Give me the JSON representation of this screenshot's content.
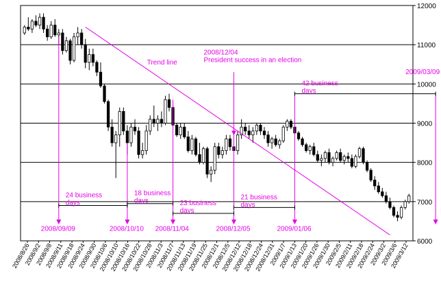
{
  "chart_data": {
    "type": "candlestick",
    "title": "",
    "xlabel": "",
    "ylabel": "",
    "ylim": [
      6000,
      12000
    ],
    "y_ticks": [
      6000,
      7000,
      8000,
      9000,
      10000,
      11000,
      12000
    ],
    "y_axis_side": "right",
    "grid": "horizontal",
    "x_tick_labels": [
      "2008/8/26",
      "2008/9/2",
      "2008/9/8",
      "2008/9/11",
      "2008/9/18",
      "2008/9/24",
      "2008/9/30",
      "2008/10/6",
      "2008/10/10",
      "2008/10/16",
      "2008/10/22",
      "2008/10/28",
      "2008/11/3",
      "2008/11/7",
      "2008/11/13",
      "2008/11/19",
      "2008/11/25",
      "2008/12/1",
      "2008/12/5",
      "2008/12/12",
      "2008/12/18",
      "2008/12/24",
      "2008/12/31",
      "2009/1/7",
      "2009/1/13",
      "2009/1/20",
      "2009/1/26",
      "2009/1/30",
      "2009/2/5",
      "2009/2/11",
      "2009/2/18",
      "2009/2/24",
      "2009/3/2",
      "2009/3/6",
      "2009/3/12"
    ],
    "candles": [
      {
        "o": 11300,
        "h": 11500,
        "l": 11250,
        "c": 11450
      },
      {
        "o": 11450,
        "h": 11700,
        "l": 11350,
        "c": 11400
      },
      {
        "o": 11400,
        "h": 11650,
        "l": 11300,
        "c": 11600
      },
      {
        "o": 11600,
        "h": 11750,
        "l": 11450,
        "c": 11500
      },
      {
        "o": 11500,
        "h": 11800,
        "l": 11400,
        "c": 11700
      },
      {
        "o": 11700,
        "h": 11800,
        "l": 11300,
        "c": 11400
      },
      {
        "o": 11400,
        "h": 11500,
        "l": 11100,
        "c": 11200
      },
      {
        "o": 11200,
        "h": 11600,
        "l": 11150,
        "c": 11500
      },
      {
        "o": 11500,
        "h": 11650,
        "l": 11200,
        "c": 11250
      },
      {
        "o": 11250,
        "h": 11400,
        "l": 11000,
        "c": 11300
      },
      {
        "o": 11300,
        "h": 11400,
        "l": 10750,
        "c": 10850
      },
      {
        "o": 10850,
        "h": 11200,
        "l": 10800,
        "c": 11100
      },
      {
        "o": 11100,
        "h": 11150,
        "l": 10500,
        "c": 10600
      },
      {
        "o": 10600,
        "h": 11300,
        "l": 10550,
        "c": 11200
      },
      {
        "o": 11200,
        "h": 11450,
        "l": 11000,
        "c": 11300
      },
      {
        "o": 11300,
        "h": 11400,
        "l": 10900,
        "c": 11000
      },
      {
        "o": 11000,
        "h": 11150,
        "l": 10400,
        "c": 10550
      },
      {
        "o": 10550,
        "h": 10900,
        "l": 10350,
        "c": 10750
      },
      {
        "o": 10750,
        "h": 10900,
        "l": 10450,
        "c": 10550
      },
      {
        "o": 10550,
        "h": 10600,
        "l": 10200,
        "c": 10300
      },
      {
        "o": 10300,
        "h": 10550,
        "l": 9900,
        "c": 9950
      },
      {
        "o": 9950,
        "h": 10000,
        "l": 9500,
        "c": 9550
      },
      {
        "o": 9550,
        "h": 9600,
        "l": 8800,
        "c": 8900
      },
      {
        "o": 8900,
        "h": 9100,
        "l": 8400,
        "c": 8500
      },
      {
        "o": 8500,
        "h": 8800,
        "l": 7600,
        "c": 8700
      },
      {
        "o": 8700,
        "h": 9400,
        "l": 8400,
        "c": 9300
      },
      {
        "o": 9300,
        "h": 9400,
        "l": 8700,
        "c": 8800
      },
      {
        "o": 8800,
        "h": 8950,
        "l": 8200,
        "c": 8500
      },
      {
        "o": 8500,
        "h": 9000,
        "l": 8400,
        "c": 8900
      },
      {
        "o": 8900,
        "h": 9100,
        "l": 8700,
        "c": 8800
      },
      {
        "o": 8800,
        "h": 8900,
        "l": 8100,
        "c": 8200
      },
      {
        "o": 8200,
        "h": 8500,
        "l": 8100,
        "c": 8300
      },
      {
        "o": 8300,
        "h": 8950,
        "l": 8200,
        "c": 8800
      },
      {
        "o": 8800,
        "h": 9200,
        "l": 8700,
        "c": 9100
      },
      {
        "o": 9100,
        "h": 9450,
        "l": 8900,
        "c": 9000
      },
      {
        "o": 9000,
        "h": 9200,
        "l": 8800,
        "c": 9100
      },
      {
        "o": 9100,
        "h": 9300,
        "l": 8900,
        "c": 9000
      },
      {
        "o": 9000,
        "h": 9700,
        "l": 8950,
        "c": 9600
      },
      {
        "o": 9600,
        "h": 9750,
        "l": 9300,
        "c": 9400
      },
      {
        "o": 9400,
        "h": 9450,
        "l": 8900,
        "c": 8950
      },
      {
        "o": 8950,
        "h": 9000,
        "l": 8650,
        "c": 8700
      },
      {
        "o": 8700,
        "h": 9000,
        "l": 8600,
        "c": 8900
      },
      {
        "o": 8900,
        "h": 9000,
        "l": 8600,
        "c": 8650
      },
      {
        "o": 8650,
        "h": 8800,
        "l": 8250,
        "c": 8300
      },
      {
        "o": 8300,
        "h": 8700,
        "l": 8200,
        "c": 8600
      },
      {
        "o": 8600,
        "h": 8650,
        "l": 8150,
        "c": 8200
      },
      {
        "o": 8200,
        "h": 8500,
        "l": 7950,
        "c": 8000
      },
      {
        "o": 8000,
        "h": 8400,
        "l": 7950,
        "c": 8350
      },
      {
        "o": 8350,
        "h": 8400,
        "l": 7600,
        "c": 7700
      },
      {
        "o": 7700,
        "h": 7900,
        "l": 7500,
        "c": 7800
      },
      {
        "o": 7800,
        "h": 8500,
        "l": 7700,
        "c": 8400
      },
      {
        "o": 8400,
        "h": 8500,
        "l": 8100,
        "c": 8200
      },
      {
        "o": 8200,
        "h": 8400,
        "l": 8100,
        "c": 8300
      },
      {
        "o": 8300,
        "h": 8700,
        "l": 8200,
        "c": 8600
      },
      {
        "o": 8600,
        "h": 8700,
        "l": 8300,
        "c": 8400
      },
      {
        "o": 8400,
        "h": 8600,
        "l": 8200,
        "c": 8300
      },
      {
        "o": 8300,
        "h": 8800,
        "l": 8200,
        "c": 8700
      },
      {
        "o": 8700,
        "h": 9100,
        "l": 8600,
        "c": 8900
      },
      {
        "o": 8900,
        "h": 9000,
        "l": 8700,
        "c": 8800
      },
      {
        "o": 8800,
        "h": 8950,
        "l": 8600,
        "c": 8700
      },
      {
        "o": 8700,
        "h": 8900,
        "l": 8500,
        "c": 8800
      },
      {
        "o": 8800,
        "h": 9000,
        "l": 8700,
        "c": 8950
      },
      {
        "o": 8950,
        "h": 9000,
        "l": 8700,
        "c": 8800
      },
      {
        "o": 8800,
        "h": 8900,
        "l": 8600,
        "c": 8700
      },
      {
        "o": 8700,
        "h": 8800,
        "l": 8400,
        "c": 8500
      },
      {
        "o": 8500,
        "h": 8650,
        "l": 8350,
        "c": 8600
      },
      {
        "o": 8600,
        "h": 8700,
        "l": 8400,
        "c": 8450
      },
      {
        "o": 8450,
        "h": 8600,
        "l": 8350,
        "c": 8550
      },
      {
        "o": 8550,
        "h": 8950,
        "l": 8500,
        "c": 8900
      },
      {
        "o": 8900,
        "h": 9100,
        "l": 8800,
        "c": 9050
      },
      {
        "o": 9050,
        "h": 9100,
        "l": 8850,
        "c": 8900
      },
      {
        "o": 8900,
        "h": 8950,
        "l": 8700,
        "c": 8750
      },
      {
        "o": 8750,
        "h": 8800,
        "l": 8550,
        "c": 8600
      },
      {
        "o": 8600,
        "h": 8650,
        "l": 8400,
        "c": 8450
      },
      {
        "o": 8450,
        "h": 8500,
        "l": 8250,
        "c": 8300
      },
      {
        "o": 8300,
        "h": 8450,
        "l": 8200,
        "c": 8400
      },
      {
        "o": 8400,
        "h": 8500,
        "l": 8150,
        "c": 8200
      },
      {
        "o": 8200,
        "h": 8300,
        "l": 8000,
        "c": 8050
      },
      {
        "o": 8050,
        "h": 8200,
        "l": 7900,
        "c": 8100
      },
      {
        "o": 8100,
        "h": 8300,
        "l": 8000,
        "c": 8250
      },
      {
        "o": 8250,
        "h": 8350,
        "l": 7950,
        "c": 8000
      },
      {
        "o": 8000,
        "h": 8150,
        "l": 7900,
        "c": 8100
      },
      {
        "o": 8100,
        "h": 8300,
        "l": 8050,
        "c": 8250
      },
      {
        "o": 8250,
        "h": 8350,
        "l": 8000,
        "c": 8050
      },
      {
        "o": 8050,
        "h": 8200,
        "l": 7950,
        "c": 8150
      },
      {
        "o": 8150,
        "h": 8250,
        "l": 8000,
        "c": 8100
      },
      {
        "o": 8100,
        "h": 8200,
        "l": 7850,
        "c": 7900
      },
      {
        "o": 7900,
        "h": 8200,
        "l": 7850,
        "c": 8150
      },
      {
        "o": 8150,
        "h": 8400,
        "l": 8100,
        "c": 8350
      },
      {
        "o": 8350,
        "h": 8400,
        "l": 7950,
        "c": 8000
      },
      {
        "o": 8000,
        "h": 8050,
        "l": 7750,
        "c": 7800
      },
      {
        "o": 7800,
        "h": 7850,
        "l": 7500,
        "c": 7550
      },
      {
        "o": 7550,
        "h": 7650,
        "l": 7300,
        "c": 7400
      },
      {
        "o": 7400,
        "h": 7500,
        "l": 7200,
        "c": 7250
      },
      {
        "o": 7250,
        "h": 7350,
        "l": 7100,
        "c": 7150
      },
      {
        "o": 7150,
        "h": 7250,
        "l": 6950,
        "c": 7000
      },
      {
        "o": 7000,
        "h": 7100,
        "l": 6800,
        "c": 6850
      },
      {
        "o": 6850,
        "h": 6900,
        "l": 6600,
        "c": 6650
      },
      {
        "o": 6650,
        "h": 6750,
        "l": 6500,
        "c": 6600
      },
      {
        "o": 6600,
        "h": 6900,
        "l": 6550,
        "c": 6850
      },
      {
        "o": 6850,
        "h": 7050,
        "l": 6800,
        "c": 7000
      },
      {
        "o": 7000,
        "h": 7200,
        "l": 6950,
        "c": 7150
      }
    ],
    "trend_line": {
      "label": "Trend line",
      "start": {
        "x_index": 16,
        "y": 11450
      },
      "end": {
        "x_index": 96,
        "y": 6150
      }
    },
    "events": [
      {
        "date": "2008/09/09",
        "x_index": 9,
        "arrow_top": 11200
      },
      {
        "date": "2008/10/10",
        "x_index": 27,
        "arrow_top": 8500
      },
      {
        "date": "2008/11/04",
        "x_index": 39,
        "arrow_top": 9600
      },
      {
        "date": "2008/12/05",
        "x_index": 55,
        "arrow_top": 8850
      },
      {
        "date": "2009/01/06",
        "x_index": 71,
        "arrow_top": 9750
      },
      {
        "date": "2009/03/09",
        "x_index": 108,
        "arrow_top": 9750
      }
    ],
    "intervals": [
      {
        "label": "24 business\ndays",
        "from_index": 9,
        "to_index": 27,
        "y": 6900
      },
      {
        "label": "18 business\ndays",
        "from_index": 27,
        "to_index": 39,
        "y": 6950
      },
      {
        "label": "23 business\ndays",
        "from_index": 39,
        "to_index": 55,
        "y": 6700
      },
      {
        "label": "21 business\ndays",
        "from_index": 55,
        "to_index": 71,
        "y": 6850
      },
      {
        "label": "42 business\ndays",
        "from_index": 71,
        "to_index": 108,
        "y": 9750
      }
    ],
    "annotations": [
      {
        "text": "2008/12/04\nPresident success in an election",
        "x_index": 55,
        "arrow_from": 10300,
        "arrow_to": 8750
      }
    ],
    "colors": {
      "annotation": "#e600e6",
      "candle": "#000000",
      "grid": "#000000"
    }
  }
}
